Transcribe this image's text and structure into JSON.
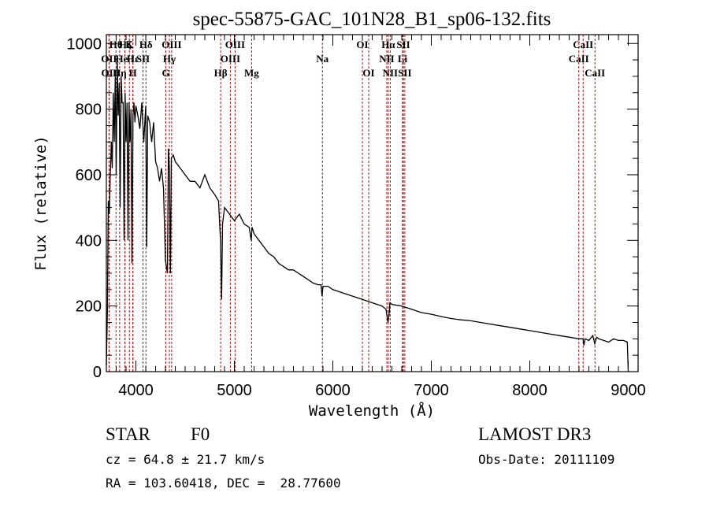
{
  "chart_data": {
    "type": "line",
    "title": "spec-55875-GAC_101N28_B1_sp06-132.fits",
    "xlabel": "Wavelength (Å)",
    "ylabel": "Flux (relative)",
    "xlim": [
      3700,
      9100
    ],
    "ylim": [
      0,
      1027
    ],
    "xticks": [
      4000,
      5000,
      6000,
      7000,
      8000,
      9000
    ],
    "xtick_labels": [
      "4000",
      "5000",
      "6000",
      "7000",
      "8000",
      "9000"
    ],
    "yticks": [
      0,
      200,
      400,
      600,
      800,
      1000
    ],
    "ytick_labels": [
      "0",
      "200",
      "400",
      "600",
      "800",
      "1000"
    ],
    "grid": false,
    "series": [
      {
        "name": "spectrum",
        "color": "#000000",
        "x": [
          3700,
          3710,
          3720,
          3730,
          3740,
          3750,
          3760,
          3770,
          3780,
          3790,
          3800,
          3810,
          3820,
          3830,
          3840,
          3850,
          3860,
          3870,
          3880,
          3890,
          3900,
          3910,
          3920,
          3930,
          3940,
          3950,
          3960,
          3970,
          3980,
          3990,
          4000,
          4020,
          4040,
          4060,
          4080,
          4100,
          4110,
          4120,
          4140,
          4160,
          4180,
          4200,
          4220,
          4240,
          4260,
          4280,
          4300,
          4320,
          4330,
          4340,
          4350,
          4360,
          4380,
          4400,
          4450,
          4500,
          4550,
          4600,
          4650,
          4700,
          4750,
          4800,
          4840,
          4850,
          4860,
          4870,
          4880,
          4900,
          4950,
          5000,
          5050,
          5100,
          5150,
          5170,
          5180,
          5200,
          5250,
          5300,
          5350,
          5400,
          5450,
          5500,
          5550,
          5600,
          5650,
          5700,
          5750,
          5800,
          5850,
          5880,
          5890,
          5900,
          5950,
          6000,
          6100,
          6200,
          6300,
          6400,
          6500,
          6540,
          6560,
          6570,
          6580,
          6600,
          6700,
          6800,
          6900,
          7000,
          7100,
          7200,
          7300,
          7400,
          7500,
          7600,
          7700,
          7800,
          7900,
          8000,
          8100,
          8200,
          8300,
          8400,
          8500,
          8540,
          8550,
          8560,
          8600,
          8640,
          8660,
          8680,
          8700,
          8750,
          8800,
          8850,
          8900,
          8950,
          8990,
          9000,
          9010
        ],
        "y": [
          20,
          180,
          520,
          480,
          600,
          700,
          620,
          850,
          700,
          900,
          600,
          950,
          780,
          880,
          500,
          900,
          820,
          820,
          400,
          850,
          700,
          820,
          400,
          820,
          700,
          800,
          330,
          780,
          820,
          760,
          810,
          780,
          740,
          820,
          700,
          810,
          380,
          780,
          760,
          700,
          760,
          640,
          620,
          580,
          620,
          560,
          340,
          300,
          680,
          620,
          300,
          650,
          660,
          640,
          620,
          600,
          580,
          580,
          560,
          600,
          560,
          540,
          520,
          450,
          400,
          220,
          450,
          500,
          480,
          460,
          480,
          450,
          440,
          400,
          440,
          420,
          400,
          380,
          360,
          350,
          330,
          320,
          310,
          310,
          300,
          290,
          280,
          270,
          265,
          265,
          230,
          260,
          260,
          250,
          240,
          230,
          220,
          210,
          200,
          190,
          150,
          170,
          210,
          205,
          200,
          190,
          180,
          175,
          168,
          162,
          158,
          155,
          150,
          145,
          140,
          135,
          130,
          125,
          120,
          115,
          110,
          105,
          100,
          100,
          80,
          100,
          95,
          110,
          85,
          105,
          100,
          95,
          90,
          100,
          95,
          95,
          90,
          0,
          0
        ]
      }
    ],
    "line_markers": [
      {
        "label": "OII",
        "wavelength": 3727,
        "row": 1
      },
      {
        "label": "OII",
        "wavelength": 3729,
        "row": 2
      },
      {
        "label": "Hθ",
        "wavelength": 3798,
        "row": 0
      },
      {
        "label": "Hη",
        "wavelength": 3835,
        "row": 2
      },
      {
        "label": "Hζ",
        "wavelength": 3889,
        "row": 0
      },
      {
        "label": "He I",
        "wavelength": 3889,
        "row": 1
      },
      {
        "label": "K",
        "wavelength": 3934,
        "row": 0
      },
      {
        "label": "H",
        "wavelength": 3969,
        "row": 2
      },
      {
        "label": "Hε",
        "wavelength": 3970,
        "row": 1
      },
      {
        "label": "SII",
        "wavelength": 4072,
        "row": 1
      },
      {
        "label": "Hδ",
        "wavelength": 4102,
        "row": 0
      },
      {
        "label": "G",
        "wavelength": 4304,
        "row": 2
      },
      {
        "label": "Hγ",
        "wavelength": 4340,
        "row": 1
      },
      {
        "label": "OIII",
        "wavelength": 4363,
        "row": 0
      },
      {
        "label": "Hβ",
        "wavelength": 4861,
        "row": 2
      },
      {
        "label": "OIII",
        "wavelength": 4959,
        "row": 1
      },
      {
        "label": "OIII",
        "wavelength": 5007,
        "row": 0
      },
      {
        "label": "Mg",
        "wavelength": 5175,
        "row": 2
      },
      {
        "label": "Na",
        "wavelength": 5894,
        "row": 1
      },
      {
        "label": "OI",
        "wavelength": 6300,
        "row": 0
      },
      {
        "label": "OI",
        "wavelength": 6364,
        "row": 2
      },
      {
        "label": "NII",
        "wavelength": 6548,
        "row": 1
      },
      {
        "label": "Hα",
        "wavelength": 6563,
        "row": 0
      },
      {
        "label": "NII",
        "wavelength": 6583,
        "row": 2
      },
      {
        "label": "Li",
        "wavelength": 6708,
        "row": 1
      },
      {
        "label": "SII",
        "wavelength": 6716,
        "row": 0
      },
      {
        "label": "SII",
        "wavelength": 6731,
        "row": 2
      },
      {
        "label": "CaII",
        "wavelength": 8498,
        "row": 1
      },
      {
        "label": "CaII",
        "wavelength": 8542,
        "row": 0
      },
      {
        "label": "CaII",
        "wavelength": 8662,
        "row": 2
      }
    ],
    "marker_color": "#aa1111"
  },
  "info": {
    "object_class": "STAR",
    "subclass": "F0",
    "survey": "LAMOST DR3",
    "redshift": "cz = 64.8 ± 21.7 km/s",
    "obs_date": "Obs-Date: 20111109",
    "coords": "RA = 103.60418, DEC =  28.77600"
  }
}
